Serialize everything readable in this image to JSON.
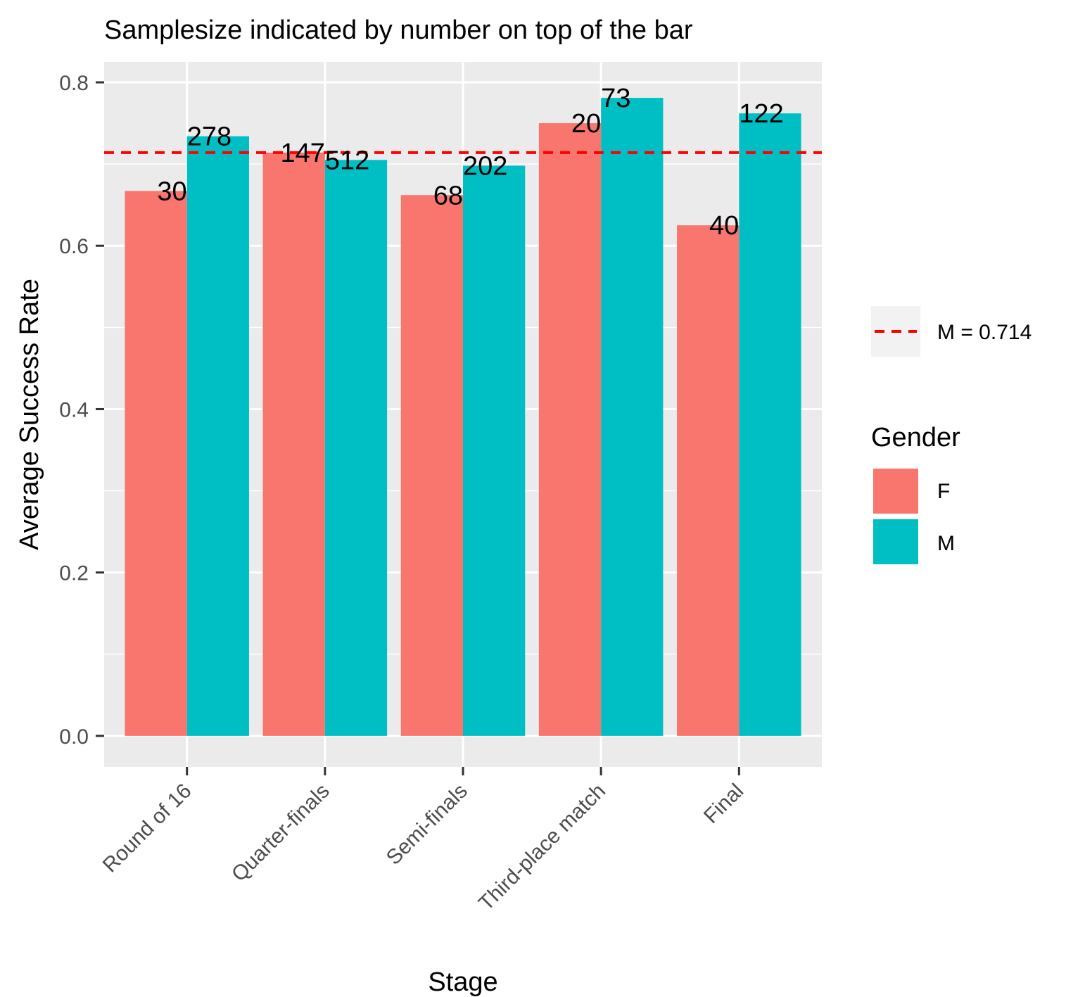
{
  "chart_data": {
    "type": "bar",
    "title": "Samplesize indicated by number on top of the bar",
    "xlabel": "Stage",
    "ylabel": "Average Success Rate",
    "categories": [
      "Round of 16",
      "Quarter-finals",
      "Semi-finals",
      "Third-place match",
      "Final"
    ],
    "series": [
      {
        "name": "F",
        "color": "#F8766D",
        "values": [
          0.667,
          0.714,
          0.662,
          0.75,
          0.625
        ],
        "labels": [
          "30",
          "147",
          "68",
          "20",
          "40"
        ]
      },
      {
        "name": "M",
        "color": "#00BFC4",
        "values": [
          0.734,
          0.705,
          0.698,
          0.781,
          0.762
        ],
        "labels": [
          "278",
          "512",
          "202",
          "73",
          "122"
        ]
      }
    ],
    "reference_line": {
      "value": 0.714,
      "label": "M = 0.714",
      "color": "#FF0000",
      "style": "dashed"
    },
    "ylim": [
      -0.038,
      0.825
    ],
    "yticks": [
      0.0,
      0.2,
      0.4,
      0.6,
      0.8
    ],
    "ytick_labels": [
      "0.0",
      "0.2",
      "0.4",
      "0.6",
      "0.8"
    ],
    "legend_title": "Gender",
    "legend_position": "right",
    "grid": true,
    "panel_background": "#EBEBEB",
    "grid_color": "#FFFFFF"
  }
}
